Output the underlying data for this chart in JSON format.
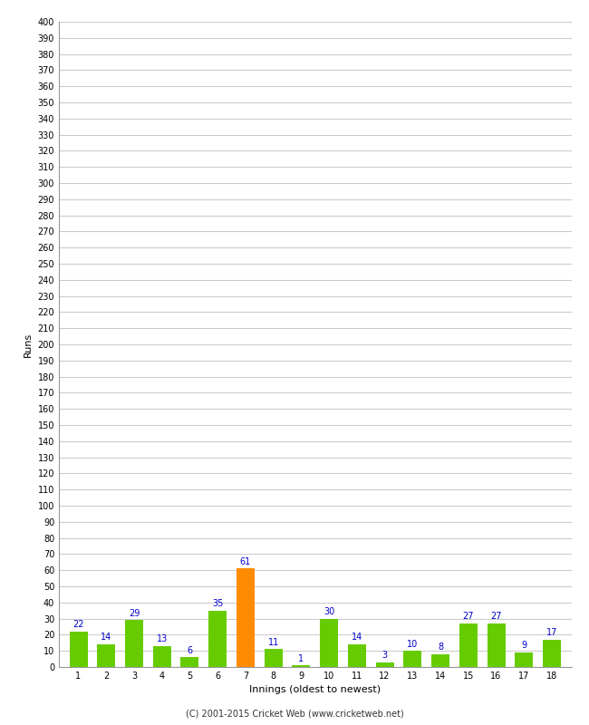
{
  "innings": [
    1,
    2,
    3,
    4,
    5,
    6,
    7,
    8,
    9,
    10,
    11,
    12,
    13,
    14,
    15,
    16,
    17,
    18
  ],
  "runs": [
    22,
    14,
    29,
    13,
    6,
    35,
    61,
    11,
    1,
    30,
    14,
    3,
    10,
    8,
    27,
    27,
    9,
    17
  ],
  "bar_colors": [
    "#66cc00",
    "#66cc00",
    "#66cc00",
    "#66cc00",
    "#66cc00",
    "#66cc00",
    "#ff8c00",
    "#66cc00",
    "#66cc00",
    "#66cc00",
    "#66cc00",
    "#66cc00",
    "#66cc00",
    "#66cc00",
    "#66cc00",
    "#66cc00",
    "#66cc00",
    "#66cc00"
  ],
  "xlabel": "Innings (oldest to newest)",
  "ylabel": "Runs",
  "ylim": [
    0,
    400
  ],
  "background_color": "#ffffff",
  "grid_color": "#cccccc",
  "label_color": "#0000cc",
  "label_fontsize": 7,
  "axis_fontsize": 8,
  "tick_fontsize": 7,
  "footer_text": "(C) 2001-2015 Cricket Web (www.cricketweb.net)"
}
